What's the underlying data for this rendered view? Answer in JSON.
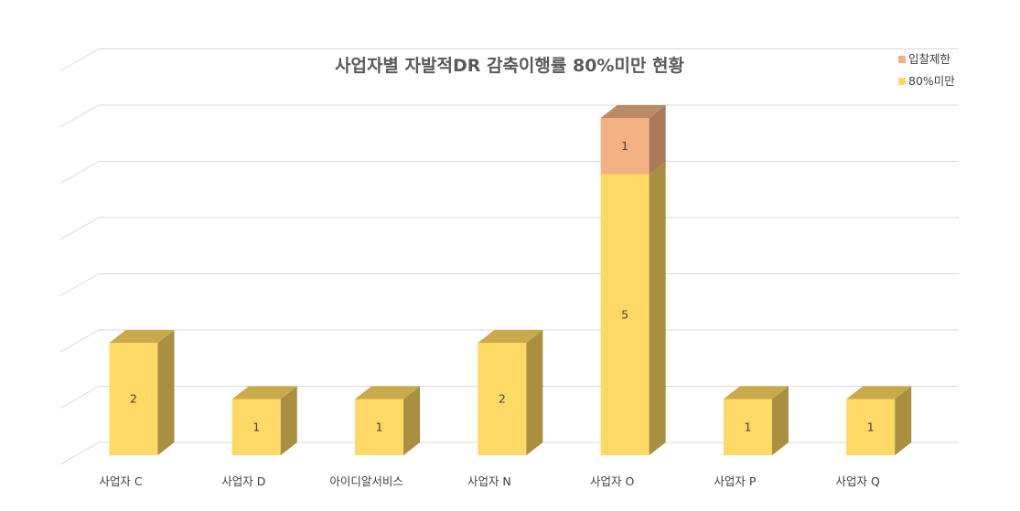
{
  "chart_data": {
    "type": "bar",
    "stacked": true,
    "three_d": true,
    "title": "사업자별 자발적DR 감축이행률 80%미만 현황",
    "categories": [
      "사업자 C",
      "사업자 D",
      "아이디알서비스",
      "사업자 N",
      "사업자 O",
      "사업자 P",
      "사업자 Q"
    ],
    "series": [
      {
        "name": "80%미만",
        "values": [
          2,
          1,
          1,
          2,
          5,
          1,
          1
        ],
        "color": "#FFD966",
        "side_color": "#A89040",
        "top_color": "#C9AA4A"
      },
      {
        "name": "입찰제한",
        "values": [
          0,
          0,
          0,
          0,
          1,
          0,
          0
        ],
        "color": "#F4B183",
        "side_color": "#A87A58",
        "top_color": "#B98B66"
      }
    ],
    "ylim": [
      0,
      8
    ],
    "grid": true,
    "legend_position": "top-right"
  }
}
